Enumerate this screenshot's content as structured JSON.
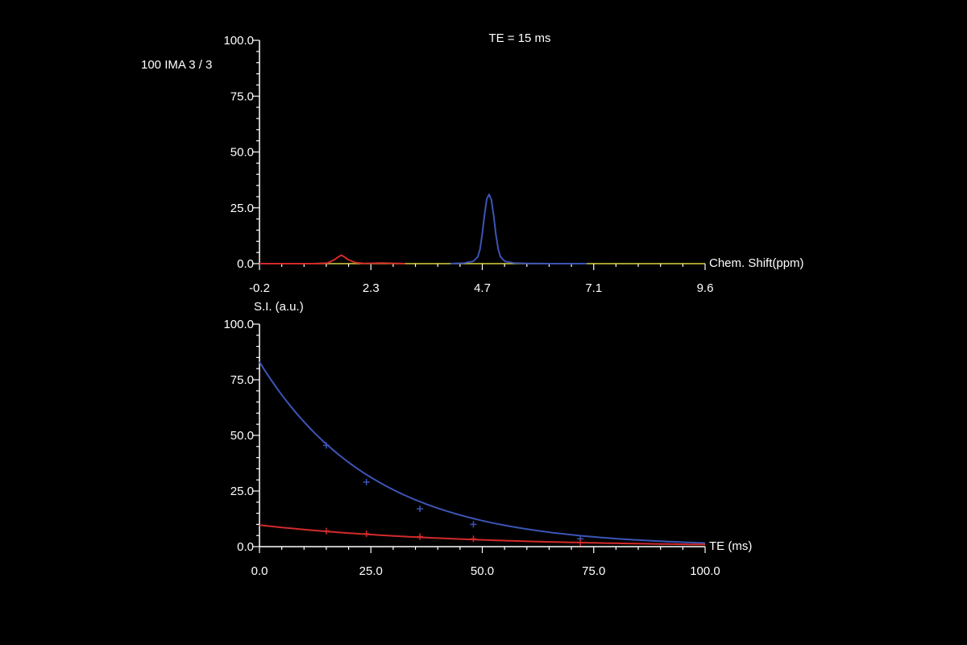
{
  "header": {
    "title": "TE = 15 ms",
    "image_label": "100 IMA 3 / 3"
  },
  "colors": {
    "background": "#000000",
    "axis": "#ffffff",
    "blue": "#3d55b5",
    "red": "#d42a2a",
    "baseline": "#d8d23a"
  },
  "chart_data": [
    {
      "type": "line",
      "title": "TE = 15 ms",
      "xlabel": "Chem. Shift(ppm)",
      "ylabel": "",
      "xlim": [
        -0.2,
        9.6
      ],
      "ylim": [
        0,
        100
      ],
      "x_ticks": [
        "-0.2",
        "2.3",
        "4.7",
        "7.1",
        "9.6"
      ],
      "y_ticks": [
        "0.0",
        "25.0",
        "50.0",
        "75.0",
        "100.0"
      ],
      "grid": false,
      "baseline_color": "#d8d23a",
      "series": [
        {
          "color": "#d42a2a",
          "x": [
            -0.2,
            1.0,
            1.3,
            1.45,
            1.55,
            1.6,
            1.65,
            1.75,
            1.9,
            2.1,
            2.5,
            3.0
          ],
          "y": [
            0,
            0,
            0.3,
            1.8,
            3.2,
            3.8,
            3.2,
            1.8,
            0.5,
            0.1,
            0.3,
            0
          ]
        },
        {
          "color": "#3d55b5",
          "x": [
            4.0,
            4.3,
            4.5,
            4.6,
            4.65,
            4.7,
            4.75,
            4.8,
            4.85,
            4.9,
            4.95,
            5.0,
            5.05,
            5.1,
            5.2,
            5.4,
            5.7,
            6.2,
            7.0
          ],
          "y": [
            0,
            0.3,
            1.0,
            3.0,
            6.5,
            13.5,
            22.0,
            29.0,
            31.0,
            28.5,
            21.5,
            13.0,
            6.5,
            3.0,
            1.0,
            0.3,
            0.1,
            0,
            0
          ]
        }
      ]
    },
    {
      "type": "line",
      "title": "",
      "xlabel": "TE (ms)",
      "ylabel": "S.I. (a.u.)",
      "xlim": [
        0,
        100
      ],
      "ylim": [
        0,
        100
      ],
      "x_ticks": [
        "0.0",
        "25.0",
        "50.0",
        "75.0",
        "100.0"
      ],
      "y_ticks": [
        "0.0",
        "25.0",
        "50.0",
        "75.0",
        "100.0"
      ],
      "grid": false,
      "series": [
        {
          "color": "#3d55b5",
          "fit": {
            "type": "exp",
            "s0": 83,
            "t2": 25.5
          },
          "points_x": [
            15,
            24,
            36,
            48,
            72
          ],
          "points_y": [
            45.5,
            29.0,
            17.0,
            10.0,
            3.5
          ]
        },
        {
          "color": "#d42a2a",
          "fit": {
            "type": "exp",
            "s0": 9.7,
            "t2": 43
          },
          "points_x": [
            15,
            24,
            36,
            48,
            72
          ],
          "points_y": [
            7.0,
            5.8,
            4.5,
            3.5,
            1.8
          ]
        }
      ]
    }
  ]
}
